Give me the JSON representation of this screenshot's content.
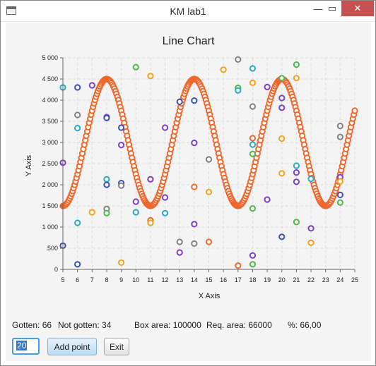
{
  "window": {
    "title": "KM lab1",
    "controls": {
      "minimize": "—",
      "maximize": "▭",
      "close": "✕"
    }
  },
  "status": {
    "gotten": "Gotten: 66",
    "not_gotten": "Not gotten: 34",
    "box_area": "Box area: 100000",
    "req_area": "Req. area: 66000",
    "percent": "%: 66,00"
  },
  "controls": {
    "count_value": "20",
    "add_point_label": "Add point",
    "exit_label": "Exit"
  },
  "chart_data": {
    "type": "scatter",
    "title": "Line Chart",
    "xlabel": "X Axis",
    "ylabel": "Y Axis",
    "xlim": [
      5,
      25
    ],
    "ylim": [
      0,
      5000
    ],
    "xticks": [
      "5",
      "6",
      "7",
      "8",
      "9",
      "10",
      "11",
      "12",
      "13",
      "14",
      "15",
      "16",
      "17",
      "18",
      "19",
      "20",
      "21",
      "22",
      "23",
      "24",
      "25"
    ],
    "yticks": [
      "0",
      "500",
      "1 000",
      "1 500",
      "2 000",
      "2 500",
      "3 000",
      "3 500",
      "4 000",
      "4 500",
      "5 000"
    ],
    "grid": true,
    "legend": "none",
    "curve": {
      "color": "#f0672c",
      "amplitude": 1500,
      "offset": 3000,
      "peaks_x": [
        8,
        14.2,
        20.5
      ],
      "troughs_x": [
        11,
        17.3,
        23.7
      ],
      "points": 300
    },
    "scatter": [
      {
        "x": 5,
        "y": 4300,
        "c": "#2aa7c6"
      },
      {
        "x": 5,
        "y": 2520,
        "c": "#7d3fc0"
      },
      {
        "x": 5,
        "y": 560,
        "c": "#3b4fb8"
      },
      {
        "x": 6,
        "y": 4300,
        "c": "#3b4fb8"
      },
      {
        "x": 6,
        "y": 3650,
        "c": "#808080"
      },
      {
        "x": 6,
        "y": 3340,
        "c": "#2aa7c6"
      },
      {
        "x": 6,
        "y": 1100,
        "c": "#2aa7c6"
      },
      {
        "x": 6,
        "y": 120,
        "c": "#3b4fb8"
      },
      {
        "x": 7,
        "y": 4350,
        "c": "#7d3fc0"
      },
      {
        "x": 7,
        "y": 1350,
        "c": "#f5a01a"
      },
      {
        "x": 8,
        "y": 3600,
        "c": "#7d3fc0"
      },
      {
        "x": 8,
        "y": 3580,
        "c": "#3b4fb8"
      },
      {
        "x": 8,
        "y": 2130,
        "c": "#2aa7c6"
      },
      {
        "x": 8,
        "y": 2000,
        "c": "#3b4fb8"
      },
      {
        "x": 8,
        "y": 1430,
        "c": "#808080"
      },
      {
        "x": 8,
        "y": 1330,
        "c": "#4cb847"
      },
      {
        "x": 9,
        "y": 3350,
        "c": "#3b4fb8"
      },
      {
        "x": 9,
        "y": 2940,
        "c": "#7d3fc0"
      },
      {
        "x": 9,
        "y": 2040,
        "c": "#3b4fb8"
      },
      {
        "x": 9,
        "y": 1980,
        "c": "#808080"
      },
      {
        "x": 9,
        "y": 160,
        "c": "#f5a01a"
      },
      {
        "x": 10,
        "y": 4780,
        "c": "#4cb847"
      },
      {
        "x": 10,
        "y": 1600,
        "c": "#7d3fc0"
      },
      {
        "x": 10,
        "y": 1350,
        "c": "#2aa7c6"
      },
      {
        "x": 11,
        "y": 4570,
        "c": "#f5a01a"
      },
      {
        "x": 11,
        "y": 2130,
        "c": "#7d3fc0"
      },
      {
        "x": 11,
        "y": 1160,
        "c": "#f0672c"
      },
      {
        "x": 11,
        "y": 1100,
        "c": "#f5a01a"
      },
      {
        "x": 12,
        "y": 3350,
        "c": "#7d3fc0"
      },
      {
        "x": 12,
        "y": 1700,
        "c": "#7d3fc0"
      },
      {
        "x": 12,
        "y": 1330,
        "c": "#2aa7c6"
      },
      {
        "x": 13,
        "y": 3960,
        "c": "#3b4fb8"
      },
      {
        "x": 13,
        "y": 650,
        "c": "#808080"
      },
      {
        "x": 13,
        "y": 400,
        "c": "#7d3fc0"
      },
      {
        "x": 14,
        "y": 3990,
        "c": "#3b4fb8"
      },
      {
        "x": 14,
        "y": 2990,
        "c": "#7d3fc0"
      },
      {
        "x": 14,
        "y": 1950,
        "c": "#f0672c"
      },
      {
        "x": 14,
        "y": 1070,
        "c": "#7d3fc0"
      },
      {
        "x": 14,
        "y": 610,
        "c": "#808080"
      },
      {
        "x": 15,
        "y": 2600,
        "c": "#808080"
      },
      {
        "x": 15,
        "y": 1830,
        "c": "#f5a01a"
      },
      {
        "x": 15,
        "y": 650,
        "c": "#f0672c"
      },
      {
        "x": 16,
        "y": 4720,
        "c": "#f5a01a"
      },
      {
        "x": 17,
        "y": 4960,
        "c": "#808080"
      },
      {
        "x": 17,
        "y": 4290,
        "c": "#4cb847"
      },
      {
        "x": 17,
        "y": 4230,
        "c": "#2aa7c6"
      },
      {
        "x": 17,
        "y": 90,
        "c": "#f0672c"
      },
      {
        "x": 18,
        "y": 4750,
        "c": "#2aa7c6"
      },
      {
        "x": 18,
        "y": 4410,
        "c": "#f5a01a"
      },
      {
        "x": 18,
        "y": 3850,
        "c": "#808080"
      },
      {
        "x": 18,
        "y": 3100,
        "c": "#f0672c"
      },
      {
        "x": 18,
        "y": 2950,
        "c": "#2aa7c6"
      },
      {
        "x": 18,
        "y": 2730,
        "c": "#4cb847"
      },
      {
        "x": 18,
        "y": 1440,
        "c": "#4cb847"
      },
      {
        "x": 18,
        "y": 330,
        "c": "#7d3fc0"
      },
      {
        "x": 18,
        "y": 120,
        "c": "#4cb847"
      },
      {
        "x": 19,
        "y": 4310,
        "c": "#7d3fc0"
      },
      {
        "x": 19,
        "y": 1650,
        "c": "#7d3fc0"
      },
      {
        "x": 20,
        "y": 4520,
        "c": "#4cb847"
      },
      {
        "x": 20,
        "y": 4050,
        "c": "#7d3fc0"
      },
      {
        "x": 20,
        "y": 3820,
        "c": "#7d3fc0"
      },
      {
        "x": 20,
        "y": 3090,
        "c": "#f5a01a"
      },
      {
        "x": 20,
        "y": 2270,
        "c": "#f5a01a"
      },
      {
        "x": 20,
        "y": 770,
        "c": "#3b4fb8"
      },
      {
        "x": 21,
        "y": 4840,
        "c": "#4cb847"
      },
      {
        "x": 21,
        "y": 4520,
        "c": "#f5a01a"
      },
      {
        "x": 21,
        "y": 2450,
        "c": "#2aa7c6"
      },
      {
        "x": 21,
        "y": 2290,
        "c": "#7d3fc0"
      },
      {
        "x": 21,
        "y": 2070,
        "c": "#7d3fc0"
      },
      {
        "x": 21,
        "y": 1120,
        "c": "#4cb847"
      },
      {
        "x": 22,
        "y": 2140,
        "c": "#2aa7c6"
      },
      {
        "x": 22,
        "y": 970,
        "c": "#7d3fc0"
      },
      {
        "x": 22,
        "y": 630,
        "c": "#f5a01a"
      },
      {
        "x": 24,
        "y": 3390,
        "c": "#808080"
      },
      {
        "x": 24,
        "y": 3130,
        "c": "#808080"
      },
      {
        "x": 24,
        "y": 2180,
        "c": "#7d3fc0"
      },
      {
        "x": 24,
        "y": 2080,
        "c": "#f5a01a"
      },
      {
        "x": 24,
        "y": 1760,
        "c": "#3b4fb8"
      },
      {
        "x": 24,
        "y": 1580,
        "c": "#4cb847"
      }
    ]
  }
}
